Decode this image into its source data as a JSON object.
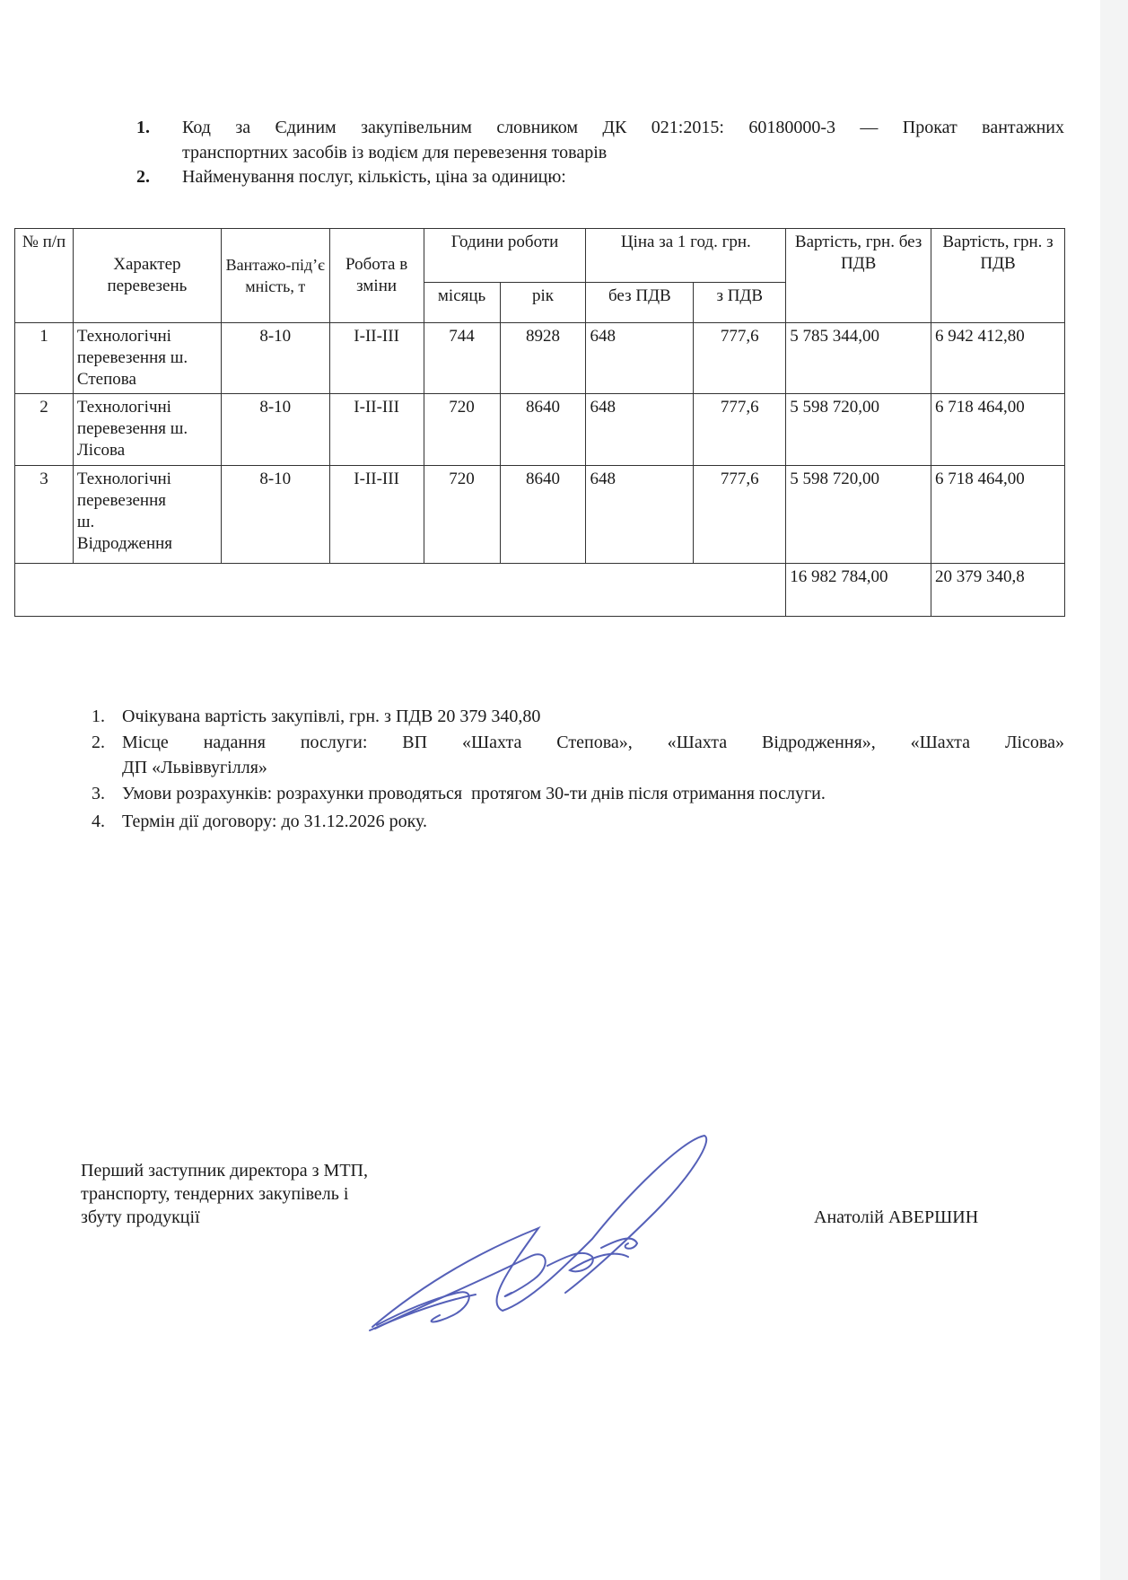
{
  "header_list": [
    {
      "num": "1.",
      "line1": "Код за Єдиним закупівельним словником ДК 021:2015: 60180000-3 — Прокат вантажних",
      "line2": "транспортних засобів із водієм для перевезення товарів"
    },
    {
      "num": "2.",
      "line1": "Найменування послуг, кількість, ціна за одиницю:"
    }
  ],
  "table": {
    "headers": {
      "num": "№ п/п",
      "character": "Характер перевезень",
      "capacity": "Вантажо-під’ємність, т",
      "shifts": "Робота в зміни",
      "hours": "Години роботи",
      "hours_month": "місяць",
      "hours_year": "рік",
      "price": "Ціна за 1 год. грн.",
      "price_novat": "без ПДВ",
      "price_vat": "з ПДВ",
      "cost_novat": "Вартість, грн. без ПДВ",
      "cost_vat": "Вартість, грн. з ПДВ"
    },
    "rows": [
      {
        "num": "1",
        "character": "Технологічні перевезення ш. Степова",
        "capacity": "8-10",
        "shifts": "I-II-III",
        "month": "744",
        "year": "8928",
        "price_novat": "648",
        "price_vat": "777,6",
        "cost_novat": "5 785 344,00",
        "cost_vat": "6 942 412,80"
      },
      {
        "num": "2",
        "character": "Технологічні перевезення ш. Лісова",
        "capacity": "8-10",
        "shifts": "I-II-III",
        "month": "720",
        "year": "8640",
        "price_novat": "648",
        "price_vat": "777,6",
        "cost_novat": "5 598 720,00",
        "cost_vat": "6 718 464,00"
      },
      {
        "num": "3",
        "character": "Технологічні перевезення ш. Відродження",
        "capacity": "8-10",
        "shifts": "I-II-III",
        "month": "720",
        "year": "8640",
        "price_novat": "648",
        "price_vat": "777,6",
        "cost_novat": "5 598 720,00",
        "cost_vat": "6 718 464,00"
      }
    ],
    "total": {
      "cost_novat": "16 982 784,00",
      "cost_vat": "20 379 340,8"
    }
  },
  "terms_list": [
    {
      "num": "1.",
      "text": "Очікувана вартість закупівлі, грн. з ПДВ 20 379 340,80"
    },
    {
      "num": "2.",
      "line1": "Місце надання послуги: ВП «Шахта Степова», «Шахта Відродження», «Шахта Лісова»",
      "line2": "ДП «Львіввугілля»"
    },
    {
      "num": "3.",
      "text": "Умови розрахунків: розрахунки проводяться  протягом 30-ти днів після отримання послуги."
    },
    {
      "num": "4.",
      "text": "Термін дії договору: до 31.12.2026 року."
    }
  ],
  "signature_block": {
    "position_lines": [
      "Перший заступник директора з МТП,",
      "транспорту, тендерних закупівель і",
      "збуту продукції"
    ],
    "name": "Анатолій АВЕРШИН",
    "signature_color": "#5560b8"
  }
}
